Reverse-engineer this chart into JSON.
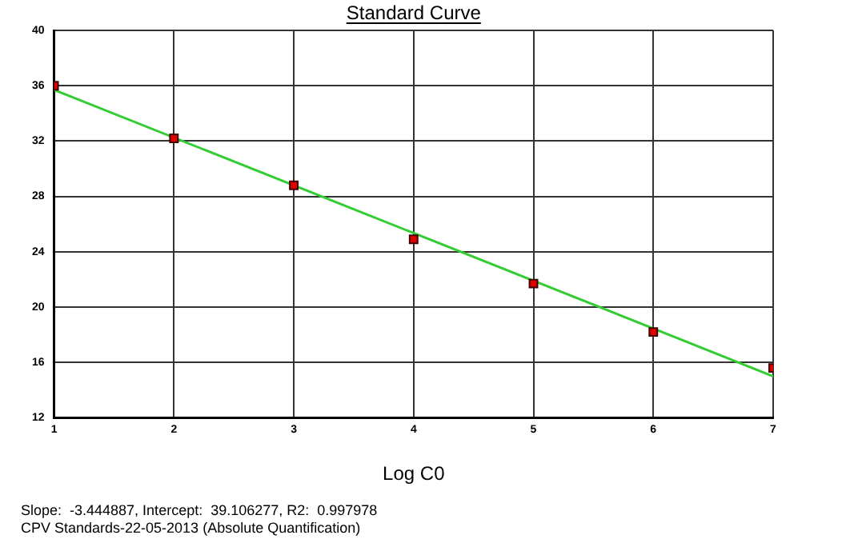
{
  "chart_data": {
    "type": "scatter",
    "title": "Standard Curve",
    "xlabel": "Log C0",
    "x": [
      1,
      2,
      3,
      4,
      5,
      6,
      7
    ],
    "series": [
      {
        "color": "#e00000",
        "values": [
          36.0,
          32.2,
          28.8,
          24.9,
          21.7,
          18.2,
          15.6
        ],
        "marker": "square"
      },
      {
        "type": "line",
        "color": "#33cc33",
        "x": [
          1,
          7
        ],
        "values": [
          35.7,
          15.0
        ],
        "marker": "none",
        "line_style": "solid"
      }
    ],
    "xlim": [
      1,
      7
    ],
    "xticks": [
      1,
      2,
      3,
      4,
      5,
      6,
      7
    ],
    "ylim": [
      12,
      40
    ],
    "yticks": [
      12,
      16,
      20,
      24,
      28,
      32,
      36,
      40
    ],
    "grid": true,
    "legend": false,
    "annotations": [
      "Slope:  -3.444887, Intercept:  39.106277, R2:  0.997978",
      "CPV Standards-22-05-2013 (Absolute Quantification)"
    ]
  }
}
